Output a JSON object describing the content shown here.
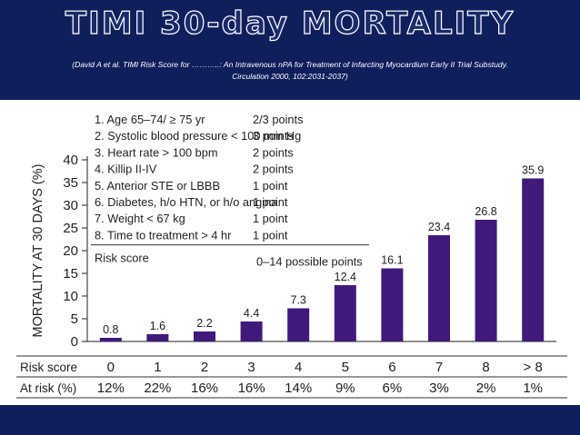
{
  "slide": {
    "title": "TIMI 30-day MORTALITY",
    "citation_line1": "(David A et al. TIMI Risk Score for ………..: An Intravenous nPA for Treatment of Infarcting Myocardium Early II Trial Substudy.",
    "citation_line2": "Circulation 2000, 102:2031-2037)"
  },
  "colors": {
    "background": "#0f1f5c",
    "bar": "#3f1a7a",
    "panel": "#ffffff"
  },
  "chart_data": {
    "type": "bar",
    "title": "",
    "ylabel": "MORTALITY AT 30 DAYS (%)",
    "ylim": [
      0,
      40
    ],
    "yticks": [
      0,
      5,
      10,
      15,
      20,
      25,
      30,
      35,
      40
    ],
    "categories": [
      "0",
      "1",
      "2",
      "3",
      "4",
      "5",
      "6",
      "7",
      "8",
      "> 8"
    ],
    "values": [
      0.8,
      1.6,
      2.2,
      4.4,
      7.3,
      12.4,
      16.1,
      23.4,
      26.8,
      35.9
    ],
    "value_labels": [
      "0.8",
      "1.6",
      "2.2",
      "4.4",
      "7.3",
      "12.4",
      "16.1",
      "23.4",
      "26.8",
      "35.9"
    ],
    "table": {
      "rows": [
        {
          "label": "Risk score",
          "cells": [
            "0",
            "1",
            "2",
            "3",
            "4",
            "5",
            "6",
            "7",
            "8",
            "> 8"
          ]
        },
        {
          "label": "At risk (%)",
          "cells": [
            "12%",
            "22%",
            "16%",
            "16%",
            "14%",
            "9%",
            "6%",
            "3%",
            "2%",
            "1%"
          ]
        }
      ]
    },
    "legend": {
      "items": [
        {
          "label": "1. Age 65–74/ ≥ 75 yr",
          "points": "2/3 points"
        },
        {
          "label": "2. Systolic blood pressure < 100 mm Hg",
          "points": "3 points"
        },
        {
          "label": "3. Heart rate > 100 bpm",
          "points": "2 points"
        },
        {
          "label": "4. Killip II-IV",
          "points": "2 points"
        },
        {
          "label": "5. Anterior STE or LBBB",
          "points": "1 point"
        },
        {
          "label": "6. Diabetes, h/o HTN, or h/o angina",
          "points": "1 point"
        },
        {
          "label": "7. Weight < 67 kg",
          "points": "1 point"
        },
        {
          "label": "8. Time to treatment > 4 hr",
          "points": "1 point"
        }
      ],
      "footer_label": "Risk score",
      "footer_value": "0–14 possible points"
    }
  }
}
